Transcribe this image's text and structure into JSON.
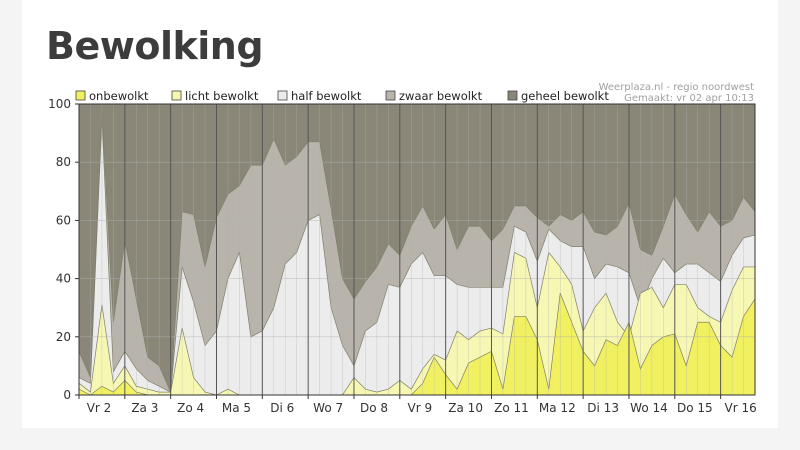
{
  "page": {
    "title": "Bewolking"
  },
  "chart_data": {
    "type": "area",
    "stacking": "cumulative",
    "credit_line1": "Weerplaza.nl - regio noordwest",
    "credit_line2": "Gemaakt: vr 02 apr 10:13",
    "ylim": [
      0,
      100
    ],
    "yticks": [
      0,
      20,
      40,
      60,
      80,
      100
    ],
    "xlim": [
      0,
      14.75
    ],
    "grid": true,
    "legend_position": "top",
    "day_labels": [
      "Vr 2",
      "Za 3",
      "Zo 4",
      "Ma 5",
      "Di 6",
      "Wo 7",
      "Do 8",
      "Vr 9",
      "Za 10",
      "Zo 11",
      "Ma 12",
      "Di 13",
      "Wo 14",
      "Do 15",
      "Vr 16"
    ],
    "colors": {
      "bands": [
        "#f0f060",
        "#f7f7b4",
        "#ececec",
        "#b8b3ab",
        "#8a8779"
      ],
      "plot_border": "#333333",
      "day_line": "#555555",
      "grid_line": "#b0b0b0"
    },
    "series": [
      {
        "name": "onbewolkt",
        "upper": [
          {
            "x": 0,
            "y": 2
          },
          {
            "x": 0.25,
            "y": 0
          },
          {
            "x": 0.5,
            "y": 3
          },
          {
            "x": 0.75,
            "y": 1
          },
          {
            "x": 1,
            "y": 5
          },
          {
            "x": 1.25,
            "y": 1
          },
          {
            "x": 1.5,
            "y": 0
          },
          {
            "x": 1.75,
            "y": 0
          },
          {
            "x": 2,
            "y": 0
          },
          {
            "x": 2.25,
            "y": 0
          },
          {
            "x": 2.5,
            "y": 0
          },
          {
            "x": 2.75,
            "y": 0
          },
          {
            "x": 3,
            "y": 0
          },
          {
            "x": 3.25,
            "y": 0
          },
          {
            "x": 3.5,
            "y": 0
          },
          {
            "x": 3.75,
            "y": 0
          },
          {
            "x": 4,
            "y": 0
          },
          {
            "x": 4.25,
            "y": 0
          },
          {
            "x": 4.5,
            "y": 0
          },
          {
            "x": 4.75,
            "y": 0
          },
          {
            "x": 5,
            "y": 0
          },
          {
            "x": 5.25,
            "y": 0
          },
          {
            "x": 5.5,
            "y": 0
          },
          {
            "x": 5.75,
            "y": 0
          },
          {
            "x": 6,
            "y": 0
          },
          {
            "x": 6.25,
            "y": 0
          },
          {
            "x": 6.5,
            "y": 0
          },
          {
            "x": 6.75,
            "y": 0
          },
          {
            "x": 7,
            "y": 0
          },
          {
            "x": 7.25,
            "y": 0
          },
          {
            "x": 7.5,
            "y": 4
          },
          {
            "x": 7.75,
            "y": 13
          },
          {
            "x": 8,
            "y": 7
          },
          {
            "x": 8.25,
            "y": 2
          },
          {
            "x": 8.5,
            "y": 11
          },
          {
            "x": 8.75,
            "y": 13
          },
          {
            "x": 9,
            "y": 15
          },
          {
            "x": 9.25,
            "y": 2
          },
          {
            "x": 9.5,
            "y": 27
          },
          {
            "x": 9.75,
            "y": 27
          },
          {
            "x": 10,
            "y": 19
          },
          {
            "x": 10.25,
            "y": 2
          },
          {
            "x": 10.5,
            "y": 35
          },
          {
            "x": 10.75,
            "y": 25
          },
          {
            "x": 11,
            "y": 15
          },
          {
            "x": 11.25,
            "y": 10
          },
          {
            "x": 11.5,
            "y": 19
          },
          {
            "x": 11.75,
            "y": 17
          },
          {
            "x": 12,
            "y": 25
          },
          {
            "x": 12.25,
            "y": 9
          },
          {
            "x": 12.5,
            "y": 17
          },
          {
            "x": 12.75,
            "y": 20
          },
          {
            "x": 13,
            "y": 21
          },
          {
            "x": 13.25,
            "y": 10
          },
          {
            "x": 13.5,
            "y": 25
          },
          {
            "x": 13.75,
            "y": 25
          },
          {
            "x": 14,
            "y": 17
          },
          {
            "x": 14.25,
            "y": 13
          },
          {
            "x": 14.5,
            "y": 27
          },
          {
            "x": 14.75,
            "y": 33
          }
        ]
      },
      {
        "name": "licht bewolkt",
        "upper": [
          {
            "x": 0,
            "y": 4
          },
          {
            "x": 0.25,
            "y": 1
          },
          {
            "x": 0.5,
            "y": 31
          },
          {
            "x": 0.75,
            "y": 4
          },
          {
            "x": 1,
            "y": 10
          },
          {
            "x": 1.25,
            "y": 3
          },
          {
            "x": 1.5,
            "y": 2
          },
          {
            "x": 1.75,
            "y": 1
          },
          {
            "x": 2,
            "y": 1
          },
          {
            "x": 2.25,
            "y": 23
          },
          {
            "x": 2.5,
            "y": 6
          },
          {
            "x": 2.75,
            "y": 1
          },
          {
            "x": 3,
            "y": 0
          },
          {
            "x": 3.25,
            "y": 2
          },
          {
            "x": 3.5,
            "y": 0
          },
          {
            "x": 3.75,
            "y": 0
          },
          {
            "x": 4,
            "y": 0
          },
          {
            "x": 4.25,
            "y": 0
          },
          {
            "x": 4.5,
            "y": 0
          },
          {
            "x": 4.75,
            "y": 0
          },
          {
            "x": 5,
            "y": 0
          },
          {
            "x": 5.25,
            "y": 0
          },
          {
            "x": 5.5,
            "y": 0
          },
          {
            "x": 5.75,
            "y": 0
          },
          {
            "x": 6,
            "y": 6
          },
          {
            "x": 6.25,
            "y": 2
          },
          {
            "x": 6.5,
            "y": 1
          },
          {
            "x": 6.75,
            "y": 2
          },
          {
            "x": 7,
            "y": 5
          },
          {
            "x": 7.25,
            "y": 2
          },
          {
            "x": 7.5,
            "y": 9
          },
          {
            "x": 7.75,
            "y": 14
          },
          {
            "x": 8,
            "y": 12
          },
          {
            "x": 8.25,
            "y": 22
          },
          {
            "x": 8.5,
            "y": 19
          },
          {
            "x": 8.75,
            "y": 22
          },
          {
            "x": 9,
            "y": 23
          },
          {
            "x": 9.25,
            "y": 21
          },
          {
            "x": 9.5,
            "y": 49
          },
          {
            "x": 9.75,
            "y": 47
          },
          {
            "x": 10,
            "y": 30
          },
          {
            "x": 10.25,
            "y": 49
          },
          {
            "x": 10.5,
            "y": 44
          },
          {
            "x": 10.75,
            "y": 38
          },
          {
            "x": 11,
            "y": 22
          },
          {
            "x": 11.25,
            "y": 30
          },
          {
            "x": 11.5,
            "y": 35
          },
          {
            "x": 11.75,
            "y": 25
          },
          {
            "x": 12,
            "y": 20
          },
          {
            "x": 12.25,
            "y": 35
          },
          {
            "x": 12.5,
            "y": 37
          },
          {
            "x": 12.75,
            "y": 30
          },
          {
            "x": 13,
            "y": 38
          },
          {
            "x": 13.25,
            "y": 38
          },
          {
            "x": 13.5,
            "y": 30
          },
          {
            "x": 13.75,
            "y": 27
          },
          {
            "x": 14,
            "y": 25
          },
          {
            "x": 14.25,
            "y": 36
          },
          {
            "x": 14.5,
            "y": 44
          },
          {
            "x": 14.75,
            "y": 44
          }
        ]
      },
      {
        "name": "half bewolkt",
        "upper": [
          {
            "x": 0,
            "y": 6
          },
          {
            "x": 0.25,
            "y": 4
          },
          {
            "x": 0.5,
            "y": 95
          },
          {
            "x": 0.75,
            "y": 8
          },
          {
            "x": 1,
            "y": 15
          },
          {
            "x": 1.25,
            "y": 9
          },
          {
            "x": 1.5,
            "y": 5
          },
          {
            "x": 1.75,
            "y": 3
          },
          {
            "x": 2,
            "y": 1
          },
          {
            "x": 2.25,
            "y": 44
          },
          {
            "x": 2.5,
            "y": 32
          },
          {
            "x": 2.75,
            "y": 17
          },
          {
            "x": 3,
            "y": 22
          },
          {
            "x": 3.25,
            "y": 40
          },
          {
            "x": 3.5,
            "y": 49
          },
          {
            "x": 3.75,
            "y": 20
          },
          {
            "x": 4,
            "y": 22
          },
          {
            "x": 4.25,
            "y": 30
          },
          {
            "x": 4.5,
            "y": 45
          },
          {
            "x": 4.75,
            "y": 49
          },
          {
            "x": 5,
            "y": 60
          },
          {
            "x": 5.25,
            "y": 62
          },
          {
            "x": 5.5,
            "y": 30
          },
          {
            "x": 5.75,
            "y": 17
          },
          {
            "x": 6,
            "y": 10
          },
          {
            "x": 6.25,
            "y": 22
          },
          {
            "x": 6.5,
            "y": 25
          },
          {
            "x": 6.75,
            "y": 38
          },
          {
            "x": 7,
            "y": 37
          },
          {
            "x": 7.25,
            "y": 45
          },
          {
            "x": 7.5,
            "y": 49
          },
          {
            "x": 7.75,
            "y": 41
          },
          {
            "x": 8,
            "y": 41
          },
          {
            "x": 8.25,
            "y": 38
          },
          {
            "x": 8.5,
            "y": 37
          },
          {
            "x": 8.75,
            "y": 37
          },
          {
            "x": 9,
            "y": 37
          },
          {
            "x": 9.25,
            "y": 37
          },
          {
            "x": 9.5,
            "y": 58
          },
          {
            "x": 9.75,
            "y": 56
          },
          {
            "x": 10,
            "y": 46
          },
          {
            "x": 10.25,
            "y": 57
          },
          {
            "x": 10.5,
            "y": 53
          },
          {
            "x": 10.75,
            "y": 51
          },
          {
            "x": 11,
            "y": 51
          },
          {
            "x": 11.25,
            "y": 40
          },
          {
            "x": 11.5,
            "y": 45
          },
          {
            "x": 11.75,
            "y": 44
          },
          {
            "x": 12,
            "y": 42
          },
          {
            "x": 12.25,
            "y": 30
          },
          {
            "x": 12.5,
            "y": 40
          },
          {
            "x": 12.75,
            "y": 47
          },
          {
            "x": 13,
            "y": 42
          },
          {
            "x": 13.25,
            "y": 45
          },
          {
            "x": 13.5,
            "y": 45
          },
          {
            "x": 13.75,
            "y": 42
          },
          {
            "x": 14,
            "y": 39
          },
          {
            "x": 14.25,
            "y": 48
          },
          {
            "x": 14.5,
            "y": 54
          },
          {
            "x": 14.75,
            "y": 55
          }
        ]
      },
      {
        "name": "zwaar bewolkt",
        "upper": [
          {
            "x": 0,
            "y": 15
          },
          {
            "x": 0.25,
            "y": 6
          },
          {
            "x": 0.5,
            "y": 98
          },
          {
            "x": 0.75,
            "y": 25
          },
          {
            "x": 1,
            "y": 53
          },
          {
            "x": 1.25,
            "y": 33
          },
          {
            "x": 1.5,
            "y": 13
          },
          {
            "x": 1.75,
            "y": 10
          },
          {
            "x": 2,
            "y": 1
          },
          {
            "x": 2.25,
            "y": 63
          },
          {
            "x": 2.5,
            "y": 62
          },
          {
            "x": 2.75,
            "y": 44
          },
          {
            "x": 3,
            "y": 61
          },
          {
            "x": 3.25,
            "y": 69
          },
          {
            "x": 3.5,
            "y": 72
          },
          {
            "x": 3.75,
            "y": 79
          },
          {
            "x": 4,
            "y": 79
          },
          {
            "x": 4.25,
            "y": 88
          },
          {
            "x": 4.5,
            "y": 79
          },
          {
            "x": 4.75,
            "y": 82
          },
          {
            "x": 5,
            "y": 87
          },
          {
            "x": 5.25,
            "y": 87
          },
          {
            "x": 5.5,
            "y": 64
          },
          {
            "x": 5.75,
            "y": 40
          },
          {
            "x": 6,
            "y": 33
          },
          {
            "x": 6.25,
            "y": 39
          },
          {
            "x": 6.5,
            "y": 44
          },
          {
            "x": 6.75,
            "y": 52
          },
          {
            "x": 7,
            "y": 48
          },
          {
            "x": 7.25,
            "y": 58
          },
          {
            "x": 7.5,
            "y": 65
          },
          {
            "x": 7.75,
            "y": 57
          },
          {
            "x": 8,
            "y": 62
          },
          {
            "x": 8.25,
            "y": 50
          },
          {
            "x": 8.5,
            "y": 58
          },
          {
            "x": 8.75,
            "y": 58
          },
          {
            "x": 9,
            "y": 53
          },
          {
            "x": 9.25,
            "y": 57
          },
          {
            "x": 9.5,
            "y": 65
          },
          {
            "x": 9.75,
            "y": 65
          },
          {
            "x": 10,
            "y": 61
          },
          {
            "x": 10.25,
            "y": 58
          },
          {
            "x": 10.5,
            "y": 62
          },
          {
            "x": 10.75,
            "y": 60
          },
          {
            "x": 11,
            "y": 63
          },
          {
            "x": 11.25,
            "y": 56
          },
          {
            "x": 11.5,
            "y": 55
          },
          {
            "x": 11.75,
            "y": 58
          },
          {
            "x": 12,
            "y": 66
          },
          {
            "x": 12.25,
            "y": 50
          },
          {
            "x": 12.5,
            "y": 48
          },
          {
            "x": 12.75,
            "y": 58
          },
          {
            "x": 13,
            "y": 69
          },
          {
            "x": 13.25,
            "y": 62
          },
          {
            "x": 13.5,
            "y": 56
          },
          {
            "x": 13.75,
            "y": 63
          },
          {
            "x": 14,
            "y": 58
          },
          {
            "x": 14.25,
            "y": 60
          },
          {
            "x": 14.5,
            "y": 68
          },
          {
            "x": 14.75,
            "y": 63
          }
        ]
      },
      {
        "name": "geheel bewolkt",
        "upper": [
          {
            "x": 0,
            "y": 100
          },
          {
            "x": 14.75,
            "y": 100
          }
        ]
      }
    ]
  }
}
